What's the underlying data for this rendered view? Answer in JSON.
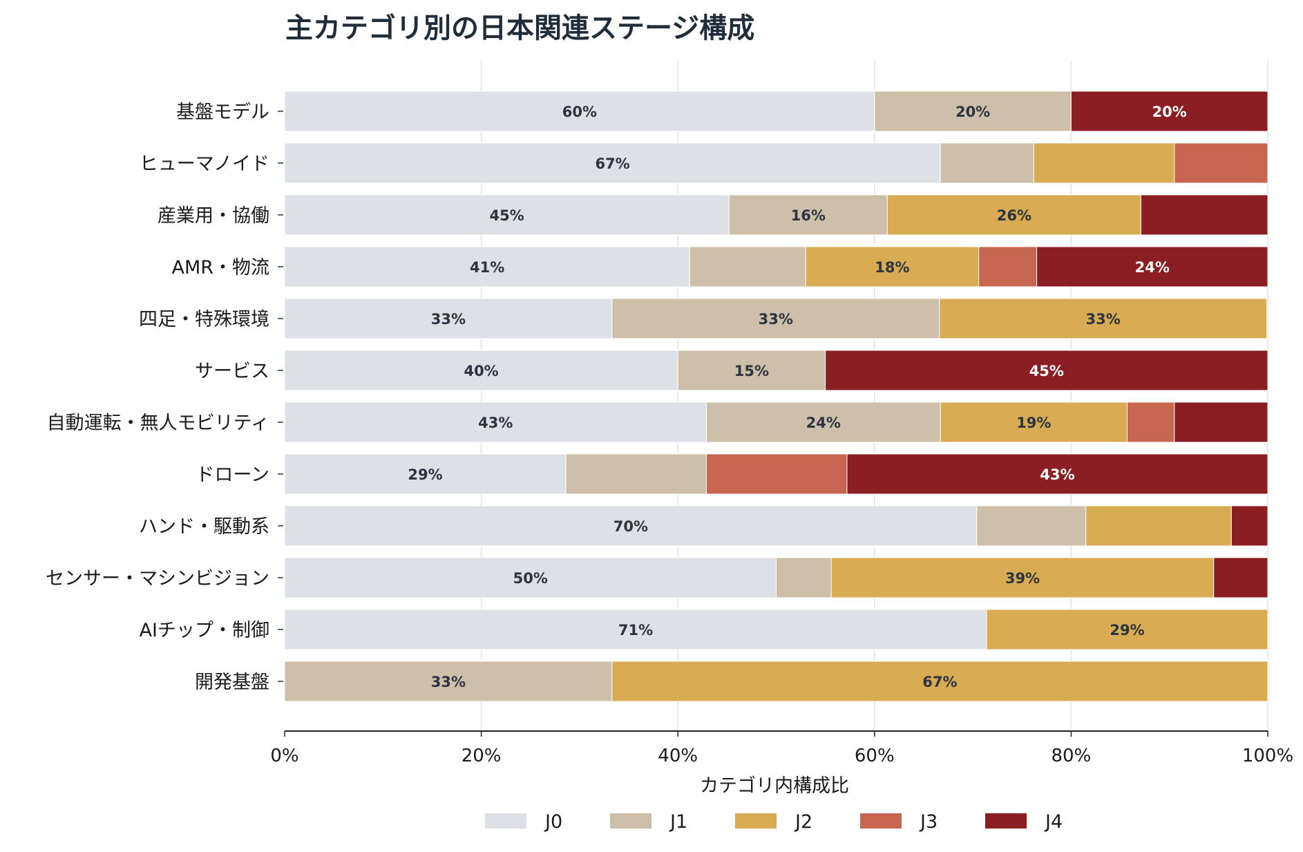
{
  "chart_data": {
    "type": "bar",
    "orientation": "horizontal",
    "stacked": true,
    "title": "主カテゴリ別の日本関連ステージ構成",
    "xlabel": "カテゴリ内構成比",
    "ylabel": "",
    "xlim": [
      0,
      100
    ],
    "x_ticks": [
      "0%",
      "20%",
      "40%",
      "60%",
      "80%",
      "100%"
    ],
    "grid": "vertical",
    "legend_position": "bottom",
    "categories": [
      "基盤モデル",
      "ヒューマノイド",
      "産業用・協働",
      "AMR・物流",
      "四足・特殊環境",
      "サービス",
      "自動運転・無人モビリティ",
      "ドローン",
      "ハンド・駆動系",
      "センサー・マシンビジョン",
      "AIチップ・制御",
      "開発基盤"
    ],
    "series": [
      {
        "name": "J0",
        "color": "#dde1e6",
        "label_color": "#2b3440",
        "values": [
          60,
          66.7,
          45.2,
          41.2,
          33.3,
          40,
          42.9,
          28.6,
          70.4,
          50,
          71.4,
          0
        ],
        "labels": [
          "60%",
          "67%",
          "45%",
          "41%",
          "33%",
          "40%",
          "43%",
          "29%",
          "70%",
          "50%",
          "71%",
          ""
        ]
      },
      {
        "name": "J1",
        "color": "#cdbfaa",
        "label_color": "#2b3440",
        "values": [
          20,
          9.5,
          16.1,
          11.8,
          33.3,
          15,
          23.8,
          14.3,
          11.1,
          5.6,
          0,
          33.3
        ],
        "labels": [
          "20%",
          "",
          "16%",
          "",
          "33%",
          "15%",
          "24%",
          "",
          "",
          "",
          "",
          "33%"
        ]
      },
      {
        "name": "J2",
        "color": "#d9ab52",
        "label_color": "#2b3440",
        "values": [
          0,
          14.3,
          25.8,
          17.6,
          33.3,
          0,
          19,
          0,
          14.8,
          38.9,
          28.6,
          66.7
        ],
        "labels": [
          "",
          "",
          "26%",
          "18%",
          "33%",
          "",
          "19%",
          "",
          "",
          "39%",
          "29%",
          "67%"
        ]
      },
      {
        "name": "J3",
        "color": "#c76651",
        "label_color": "#ffffff",
        "values": [
          0,
          9.5,
          0,
          5.9,
          0,
          0,
          4.8,
          14.3,
          0,
          0,
          0,
          0
        ],
        "labels": [
          "",
          "",
          "",
          "",
          "",
          "",
          "",
          "",
          "",
          "",
          "",
          ""
        ]
      },
      {
        "name": "J4",
        "color": "#8b1e22",
        "label_color": "#ffffff",
        "values": [
          20,
          0,
          12.9,
          23.5,
          0,
          45,
          9.5,
          42.8,
          3.7,
          5.5,
          0,
          0
        ],
        "labels": [
          "20%",
          "",
          "",
          "24%",
          "",
          "45%",
          "",
          "43%",
          "",
          "",
          "",
          ""
        ]
      }
    ]
  }
}
